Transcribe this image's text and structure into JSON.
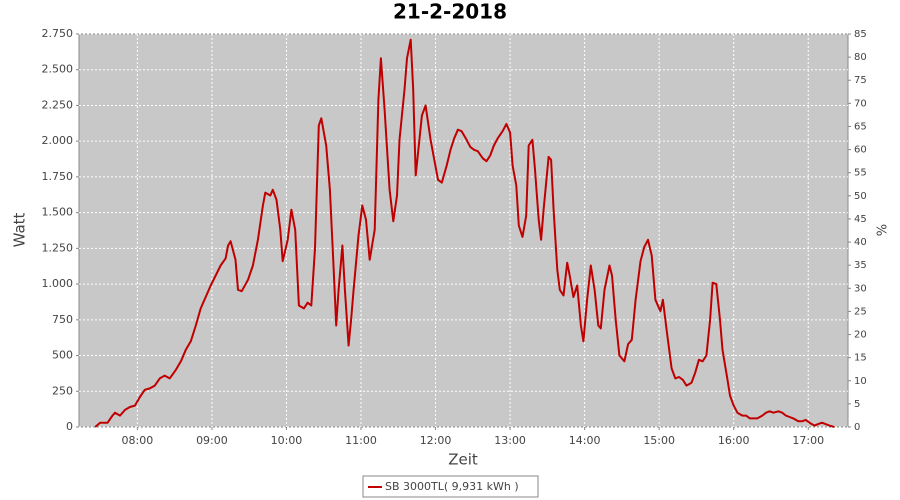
{
  "chart_data": {
    "type": "line",
    "title": "21-2-2018",
    "x_label": "Zeit",
    "y_label": "Watt",
    "y2_label": "%",
    "x": [
      "07:26",
      "07:30",
      "07:36",
      "07:40",
      "07:42",
      "07:46",
      "07:50",
      "07:54",
      "07:58",
      "08:02",
      "08:06",
      "08:10",
      "08:14",
      "08:18",
      "08:22",
      "08:26",
      "08:31",
      "08:35",
      "08:39",
      "08:43",
      "08:47",
      "08:51",
      "08:55",
      "08:59",
      "09:03",
      "09:07",
      "09:11",
      "09:13",
      "09:15",
      "09:19",
      "09:21",
      "09:24",
      "09:29",
      "09:33",
      "09:37",
      "09:41",
      "09:43",
      "09:47",
      "09:49",
      "09:52",
      "09:55",
      "09:57",
      "10:01",
      "10:04",
      "10:07",
      "10:10",
      "10:14",
      "10:17",
      "10:20",
      "10:23",
      "10:26",
      "10:28",
      "10:32",
      "10:35",
      "10:38",
      "10:40",
      "10:42",
      "10:45",
      "10:47",
      "10:50",
      "10:52",
      "10:54",
      "10:58",
      "11:01",
      "11:04",
      "11:07",
      "11:11",
      "11:14",
      "11:16",
      "11:19",
      "11:23",
      "11:26",
      "11:29",
      "11:31",
      "11:35",
      "11:37",
      "11:40",
      "11:42",
      "11:44",
      "11:47",
      "11:49",
      "11:52",
      "11:56",
      "11:59",
      "12:02",
      "12:05",
      "12:09",
      "12:12",
      "12:15",
      "12:18",
      "12:21",
      "12:25",
      "12:28",
      "12:31",
      "12:34",
      "12:38",
      "12:41",
      "12:44",
      "12:47",
      "12:50",
      "12:54",
      "12:57",
      "13:00",
      "13:02",
      "13:05",
      "13:07",
      "13:10",
      "13:13",
      "13:15",
      "13:18",
      "13:20",
      "13:23",
      "13:25",
      "13:27",
      "13:31",
      "13:33",
      "13:35",
      "13:38",
      "13:40",
      "13:43",
      "13:46",
      "13:48",
      "13:51",
      "13:54",
      "13:57",
      "13:59",
      "14:02",
      "14:05",
      "14:08",
      "14:11",
      "14:13",
      "14:16",
      "14:20",
      "14:22",
      "14:25",
      "14:28",
      "14:32",
      "14:35",
      "14:38",
      "14:41",
      "14:45",
      "14:48",
      "14:51",
      "14:54",
      "14:57",
      "15:01",
      "15:03",
      "15:06",
      "15:10",
      "15:13",
      "15:16",
      "15:19",
      "15:22",
      "15:26",
      "15:29",
      "15:32",
      "15:35",
      "15:38",
      "15:41",
      "15:43",
      "15:46",
      "15:49",
      "15:51",
      "15:55",
      "15:57",
      "16:00",
      "16:03",
      "16:07",
      "16:10",
      "16:13",
      "16:16",
      "16:19",
      "16:23",
      "16:26",
      "16:29",
      "16:32",
      "16:36",
      "16:39",
      "16:42",
      "16:45",
      "16:48",
      "16:52",
      "16:55",
      "16:58",
      "17:01",
      "17:05",
      "17:08",
      "17:11",
      "17:14",
      "17:17",
      "17:21"
    ],
    "series": [
      {
        "name": "SB 3000TL( 9,931 kWh )",
        "color": "#c00000",
        "values": [
          0,
          30,
          30,
          80,
          100,
          80,
          120,
          140,
          150,
          210,
          260,
          270,
          290,
          340,
          360,
          340,
          400,
          460,
          540,
          600,
          710,
          830,
          910,
          990,
          1060,
          1130,
          1180,
          1270,
          1300,
          1170,
          960,
          950,
          1030,
          1130,
          1310,
          1550,
          1640,
          1620,
          1660,
          1590,
          1380,
          1160,
          1310,
          1520,
          1380,
          850,
          830,
          870,
          850,
          1250,
          2110,
          2160,
          1970,
          1660,
          1100,
          710,
          960,
          1270,
          960,
          570,
          750,
          960,
          1340,
          1550,
          1450,
          1170,
          1380,
          2290,
          2580,
          2220,
          1660,
          1440,
          1620,
          2010,
          2360,
          2580,
          2710,
          2360,
          1760,
          2010,
          2180,
          2250,
          2010,
          1870,
          1730,
          1710,
          1830,
          1940,
          2020,
          2080,
          2070,
          2010,
          1960,
          1940,
          1930,
          1880,
          1860,
          1900,
          1970,
          2020,
          2070,
          2120,
          2060,
          1830,
          1690,
          1410,
          1330,
          1480,
          1970,
          2010,
          1810,
          1450,
          1310,
          1520,
          1890,
          1870,
          1520,
          1100,
          960,
          920,
          1150,
          1060,
          910,
          990,
          710,
          600,
          890,
          1130,
          960,
          710,
          690,
          960,
          1130,
          1060,
          750,
          500,
          460,
          580,
          610,
          890,
          1160,
          1260,
          1310,
          1200,
          890,
          810,
          890,
          680,
          410,
          340,
          350,
          330,
          290,
          310,
          380,
          470,
          460,
          500,
          750,
          1010,
          1000,
          750,
          540,
          330,
          220,
          150,
          100,
          80,
          80,
          60,
          60,
          60,
          80,
          100,
          110,
          100,
          110,
          100,
          80,
          70,
          60,
          40,
          40,
          50,
          30,
          10,
          20,
          30,
          20,
          10,
          0
        ]
      }
    ],
    "xlim": [
      "07:13",
      "17:32"
    ],
    "xticks": [
      "08:00",
      "09:00",
      "10:00",
      "11:00",
      "12:00",
      "13:00",
      "14:00",
      "15:00",
      "16:00",
      "17:00"
    ],
    "ylim": [
      0,
      2750
    ],
    "yticks": [
      0,
      250,
      500,
      750,
      {
        "value": 1000,
        "label": "1.000"
      },
      {
        "value": 1250,
        "label": "1.250"
      },
      {
        "value": 1500,
        "label": "1.500"
      },
      {
        "value": 1750,
        "label": "1.750"
      },
      {
        "value": 2000,
        "label": "2.000"
      },
      {
        "value": 2250,
        "label": "2.250"
      },
      {
        "value": 2500,
        "label": "2.500"
      },
      {
        "value": 2750,
        "label": "2.750"
      }
    ],
    "y2lim": [
      0,
      85
    ],
    "y2ticks": [
      0,
      5,
      10,
      15,
      20,
      25,
      30,
      35,
      40,
      45,
      50,
      55,
      60,
      65,
      70,
      75,
      80,
      85
    ],
    "grid": true,
    "legend": "bottom"
  }
}
